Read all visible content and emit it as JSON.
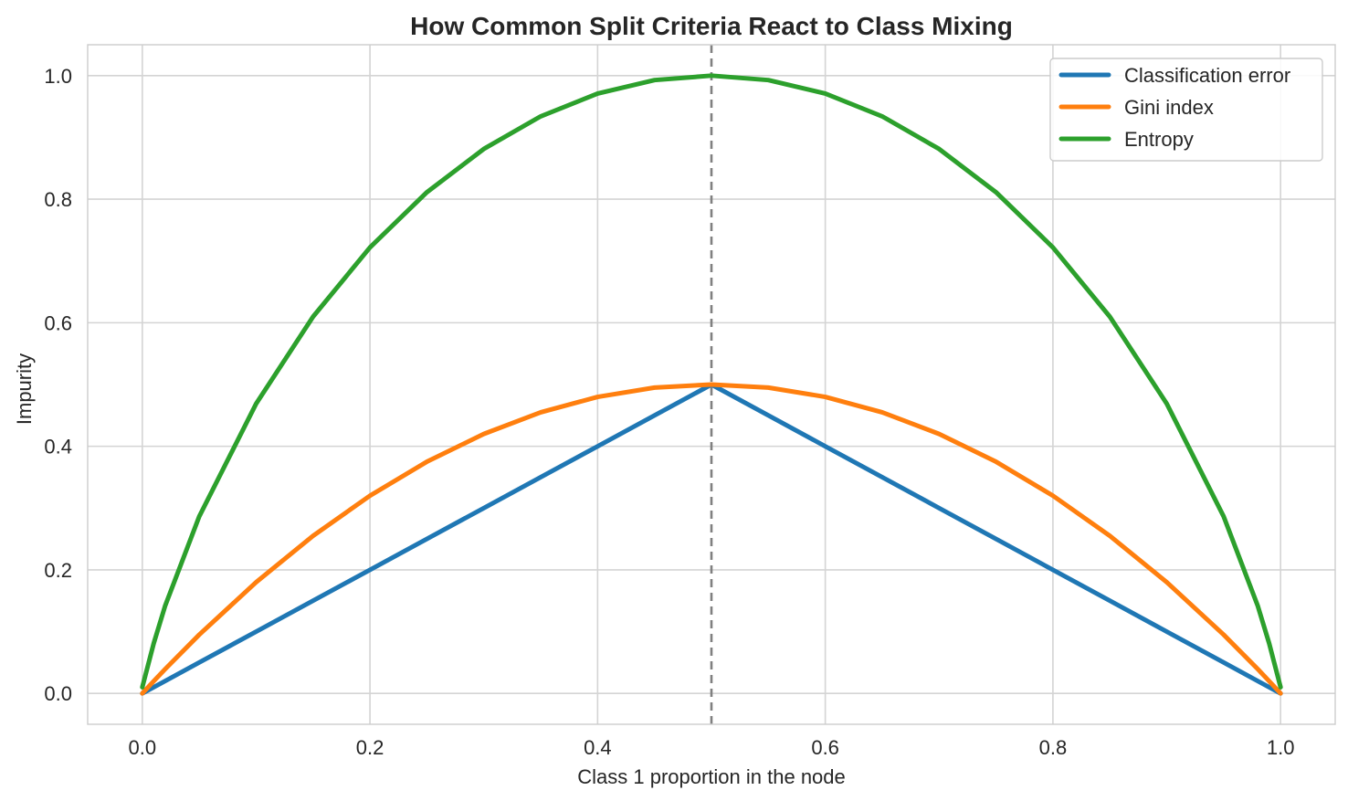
{
  "chart_data": {
    "type": "line",
    "title": "How Common Split Criteria React to Class Mixing",
    "xlabel": "Class 1 proportion in the node",
    "ylabel": "Impurity",
    "xlim": [
      -0.048,
      1.048
    ],
    "ylim": [
      -0.05,
      1.05
    ],
    "xticks": [
      0.0,
      0.2,
      0.4,
      0.6,
      0.8,
      1.0
    ],
    "xtick_labels": [
      "0.0",
      "0.2",
      "0.4",
      "0.6",
      "0.8",
      "1.0"
    ],
    "yticks": [
      0.0,
      0.2,
      0.4,
      0.6,
      0.8,
      1.0
    ],
    "ytick_labels": [
      "0.0",
      "0.2",
      "0.4",
      "0.6",
      "0.8",
      "1.0"
    ],
    "grid": true,
    "legend_position": "top-right",
    "reference_line": {
      "axis": "x",
      "value": 0.5,
      "style": "dashed",
      "color": "#808080"
    },
    "x": [
      0.0,
      0.01,
      0.02,
      0.05,
      0.1,
      0.15,
      0.2,
      0.25,
      0.3,
      0.35,
      0.4,
      0.45,
      0.5,
      0.55,
      0.6,
      0.65,
      0.7,
      0.75,
      0.8,
      0.85,
      0.9,
      0.95,
      0.98,
      0.99,
      1.0
    ],
    "series": [
      {
        "name": "Classification error",
        "color": "#1f77b4",
        "values": [
          0.0,
          0.01,
          0.02,
          0.05,
          0.1,
          0.15,
          0.2,
          0.25,
          0.3,
          0.35,
          0.4,
          0.45,
          0.5,
          0.45,
          0.4,
          0.35,
          0.3,
          0.25,
          0.2,
          0.15,
          0.1,
          0.05,
          0.02,
          0.01,
          0.0
        ]
      },
      {
        "name": "Gini index",
        "color": "#ff7f0e",
        "values": [
          0.0,
          0.0198,
          0.0392,
          0.095,
          0.18,
          0.255,
          0.32,
          0.375,
          0.42,
          0.455,
          0.48,
          0.495,
          0.5,
          0.495,
          0.48,
          0.455,
          0.42,
          0.375,
          0.32,
          0.255,
          0.18,
          0.095,
          0.0392,
          0.0198,
          0.0
        ]
      },
      {
        "name": "Entropy",
        "color": "#2ca02c",
        "values": [
          0.01,
          0.0808,
          0.1414,
          0.2864,
          0.469,
          0.6098,
          0.7219,
          0.8113,
          0.8813,
          0.9341,
          0.971,
          0.9928,
          1.0,
          0.9928,
          0.971,
          0.9341,
          0.8813,
          0.8113,
          0.7219,
          0.6098,
          0.469,
          0.2864,
          0.1414,
          0.0808,
          0.01
        ]
      }
    ]
  }
}
